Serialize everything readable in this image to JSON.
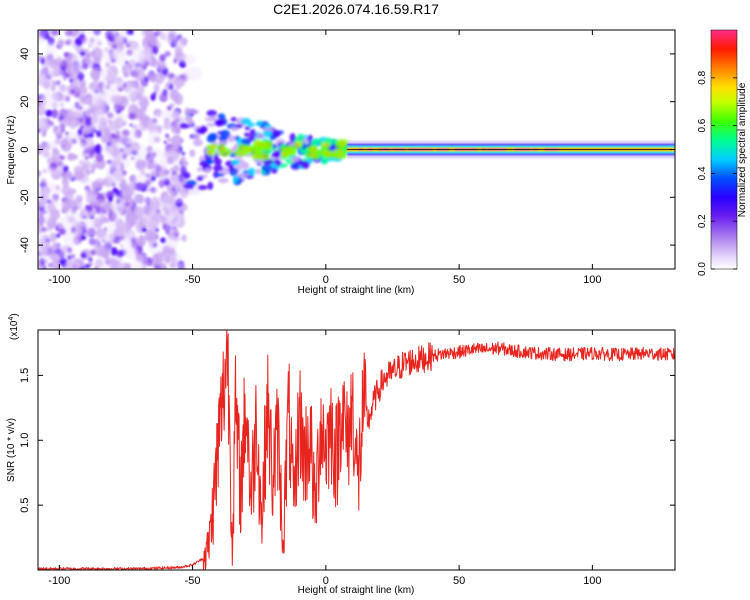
{
  "title": "C2E1.2026.074.16.59.R17",
  "colors": {
    "snr_line": "#e8241f",
    "colormap": [
      "#ffffff",
      "#c9a8f2",
      "#8f4ff0",
      "#4f00ff",
      "#0040ff",
      "#00d0ff",
      "#00ff90",
      "#70ff00",
      "#e8ff00",
      "#ffa000",
      "#ff2000",
      "#ff2d8a"
    ]
  },
  "chart_data": [
    {
      "type": "heatmap",
      "xlabel": "Height of straight line (km)",
      "ylabel": "Frequency (Hz)",
      "xlim": [
        -108,
        131
      ],
      "ylim": [
        -50,
        50
      ],
      "xticks": [
        {
          "value": -100,
          "label": "-100"
        },
        {
          "value": -50,
          "label": "-50"
        },
        {
          "value": 0,
          "label": "0"
        },
        {
          "value": 50,
          "label": "50"
        },
        {
          "value": 100,
          "label": "100"
        }
      ],
      "yticks": [
        {
          "value": -40,
          "label": "-40"
        },
        {
          "value": -20,
          "label": "-20"
        },
        {
          "value": 0,
          "label": "0"
        },
        {
          "value": 20,
          "label": "20"
        },
        {
          "value": 40,
          "label": "40"
        }
      ],
      "colorbar": {
        "label": "Normalized spectral amplitude",
        "range": [
          0,
          1
        ],
        "ticks": [
          {
            "value": 0.0,
            "label": "0.0"
          },
          {
            "value": 0.2,
            "label": "0.2"
          },
          {
            "value": 0.4,
            "label": "0.4"
          },
          {
            "value": 0.6,
            "label": "0.6"
          },
          {
            "value": 0.8,
            "label": "0.8"
          }
        ]
      },
      "features": {
        "noise_region_km": [
          -108,
          -53
        ],
        "transition_region_km": [
          -53,
          8
        ],
        "stable_line_region_km": [
          8,
          131
        ],
        "line_frequency_hz": 0
      }
    },
    {
      "type": "line",
      "xlabel": "Height of straight line (km)",
      "ylabel": "SNR (10 * v/v)",
      "multiplier_label": "(x10",
      "multiplier_exp": "4",
      "multiplier_close": ")",
      "xlim": [
        -108,
        131
      ],
      "ylim": [
        0,
        1.85
      ],
      "xticks": [
        {
          "value": -100,
          "label": "-100"
        },
        {
          "value": -50,
          "label": "-50"
        },
        {
          "value": 0,
          "label": "0"
        },
        {
          "value": 50,
          "label": "50"
        },
        {
          "value": 100,
          "label": "100"
        }
      ],
      "yticks": [
        {
          "value": 0.5,
          "label": "0.5"
        },
        {
          "value": 1.0,
          "label": "1.0"
        },
        {
          "value": 1.5,
          "label": "1.5"
        }
      ],
      "series": [
        {
          "x": [
            -108,
            -90,
            -70,
            -55,
            -50,
            -46,
            -44,
            -42,
            -40,
            -38,
            -37,
            -36,
            -35,
            -34,
            -32,
            -30,
            -28,
            -26,
            -24,
            -22,
            -20,
            -18,
            -16,
            -14,
            -12,
            -10,
            -8,
            -6,
            -4,
            -2,
            0,
            2,
            4,
            6,
            8,
            10,
            12,
            14,
            16,
            18,
            20,
            22,
            25,
            28,
            30,
            35,
            40,
            45,
            50,
            55,
            60,
            65,
            70,
            75,
            80,
            90,
            100,
            110,
            120,
            131
          ],
          "y": [
            0.01,
            0.01,
            0.01,
            0.02,
            0.04,
            0.09,
            0.18,
            0.55,
            1.05,
            1.45,
            1.78,
            1.05,
            0.12,
            1.25,
            0.6,
            1.3,
            0.55,
            1.2,
            0.35,
            1.3,
            0.7,
            1.05,
            0.2,
            1.25,
            0.45,
            1.2,
            0.85,
            1.05,
            0.45,
            1.15,
            0.95,
            1.1,
            0.85,
            1.3,
            0.95,
            1.3,
            0.65,
            1.25,
            1.15,
            1.3,
            1.4,
            1.48,
            1.52,
            1.57,
            1.6,
            1.62,
            1.65,
            1.67,
            1.68,
            1.7,
            1.7,
            1.71,
            1.69,
            1.68,
            1.67,
            1.66,
            1.67,
            1.66,
            1.67,
            1.66
          ]
        }
      ]
    }
  ]
}
